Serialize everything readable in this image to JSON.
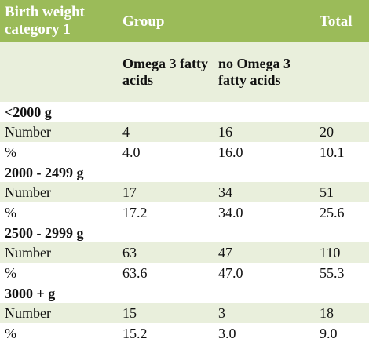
{
  "header": {
    "category": "Birth weight category 1",
    "group": "Group",
    "total": "Total"
  },
  "subheader": {
    "omega": "Omega 3 fatty acids",
    "no_omega": "no Omega 3 fatty acids"
  },
  "sections": [
    {
      "label": "<2000 g",
      "number": {
        "label": "Number",
        "omega": "4",
        "no_omega": "16",
        "total": "20"
      },
      "percent": {
        "label": "%",
        "omega": "4.0",
        "no_omega": "16.0",
        "total": "10.1"
      }
    },
    {
      "label": "2000 - 2499 g",
      "number": {
        "label": "Number",
        "omega": "17",
        "no_omega": "34",
        "total": "51"
      },
      "percent": {
        "label": "%",
        "omega": "17.2",
        "no_omega": "34.0",
        "total": "25.6"
      }
    },
    {
      "label": "2500 - 2999 g",
      "number": {
        "label": "Number",
        "omega": "63",
        "no_omega": "47",
        "total": "110"
      },
      "percent": {
        "label": "%",
        "omega": "63.6",
        "no_omega": "47.0",
        "total": "55.3"
      }
    },
    {
      "label": "3000 + g",
      "number": {
        "label": "Number",
        "omega": "15",
        "no_omega": "3",
        "total": "18"
      },
      "percent": {
        "label": "%",
        "omega": "15.2",
        "no_omega": "3.0",
        "total": "9.0"
      }
    }
  ],
  "colors": {
    "header_bg": "#9bbb59",
    "band_bg": "#e9efdc",
    "header_text": "#ffffff"
  }
}
